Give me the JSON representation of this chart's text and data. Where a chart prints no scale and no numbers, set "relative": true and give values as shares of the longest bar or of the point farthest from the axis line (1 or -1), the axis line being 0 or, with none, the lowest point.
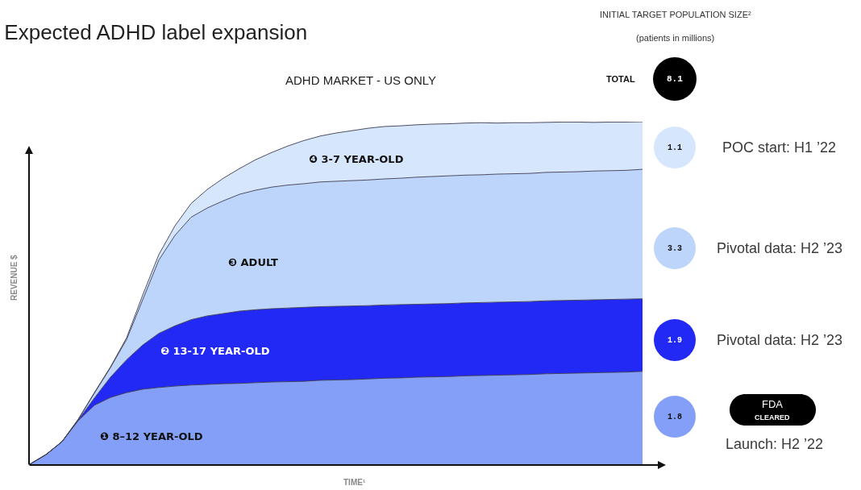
{
  "chart_data": {
    "type": "area",
    "title": "Expected ADHD label expansion",
    "subtitle": "ADHD MARKET - US ONLY",
    "xlabel": "TIME¹",
    "ylabel": "REVENUE $",
    "relative": true,
    "stacked": true,
    "legend": false,
    "marker": "none",
    "categories": [
      null,
      null,
      null,
      null,
      null,
      null,
      null,
      null,
      null,
      null,
      null,
      null,
      null,
      null,
      null,
      null,
      null,
      null,
      null,
      null,
      null,
      null,
      null,
      null,
      null,
      null,
      null,
      null,
      null,
      null,
      null,
      null,
      null,
      null,
      null,
      null,
      null,
      null,
      null
    ],
    "series": [
      {
        "name": "❶ 8–12 YEAR-OLD",
        "color": "#849ff7",
        "values": [
          0,
          0.028,
          0.066,
          0.127,
          0.172,
          0.195,
          0.209,
          0.219,
          0.224,
          0.228,
          0.231,
          0.233,
          0.235,
          0.236,
          0.238,
          0.24,
          0.241,
          0.242,
          0.245,
          0.246,
          0.247,
          0.249,
          0.251,
          0.252,
          0.254,
          0.255,
          0.256,
          0.258,
          0.259,
          0.26,
          0.261,
          0.262,
          0.264,
          0.265,
          0.266,
          0.267,
          0.268,
          0.269,
          0.271
        ]
      },
      {
        "name": "❷ 13-17 YEAR-OLD",
        "color": "#2329f4",
        "values": [
          0,
          0,
          0,
          0.002,
          0.021,
          0.059,
          0.096,
          0.129,
          0.158,
          0.176,
          0.191,
          0.2,
          0.205,
          0.211,
          0.213,
          0.214,
          0.215,
          0.216,
          0.215,
          0.215,
          0.215,
          0.214,
          0.214,
          0.214,
          0.213,
          0.213,
          0.213,
          0.213,
          0.213,
          0.213,
          0.213,
          0.213,
          0.213,
          0.213,
          0.213,
          0.213,
          0.213,
          0.213,
          0.212
        ]
      },
      {
        "name": "❸ ADULT",
        "color": "#bdd4fb",
        "values": [
          0,
          0,
          0,
          0.002,
          0.014,
          0.028,
          0.059,
          0.132,
          0.214,
          0.264,
          0.299,
          0.315,
          0.329,
          0.341,
          0.349,
          0.355,
          0.359,
          0.361,
          0.364,
          0.365,
          0.366,
          0.367,
          0.368,
          0.369,
          0.371,
          0.372,
          0.373,
          0.373,
          0.373,
          0.374,
          0.374,
          0.374,
          0.375,
          0.375,
          0.375,
          0.376,
          0.376,
          0.376,
          0.378
        ]
      },
      {
        "name": "❹ 3-7 YEAR-OLD",
        "color": "#d6e6fd",
        "values": [
          0,
          0,
          0,
          0,
          0.002,
          0.002,
          0.005,
          0.014,
          0.016,
          0.028,
          0.04,
          0.054,
          0.066,
          0.075,
          0.089,
          0.101,
          0.114,
          0.126,
          0.134,
          0.141,
          0.146,
          0.151,
          0.153,
          0.153,
          0.153,
          0.153,
          0.152,
          0.152,
          0.152,
          0.149,
          0.149,
          0.148,
          0.146,
          0.146,
          0.145,
          0.142,
          0.142,
          0.141,
          0.139
        ]
      }
    ],
    "annotations": [
      "INITIAL TARGET POPULATION SIZE²",
      "(patients in millions)",
      "TOTAL",
      "8.1",
      "1.1",
      "POC start: H1 ’22",
      "3.3",
      "Pivotal data: H2 ’23",
      "1.9",
      "Pivotal data: H2 ’23",
      "1.8",
      "FDA",
      "CLEARED",
      "Launch: H2 ’22"
    ]
  }
}
